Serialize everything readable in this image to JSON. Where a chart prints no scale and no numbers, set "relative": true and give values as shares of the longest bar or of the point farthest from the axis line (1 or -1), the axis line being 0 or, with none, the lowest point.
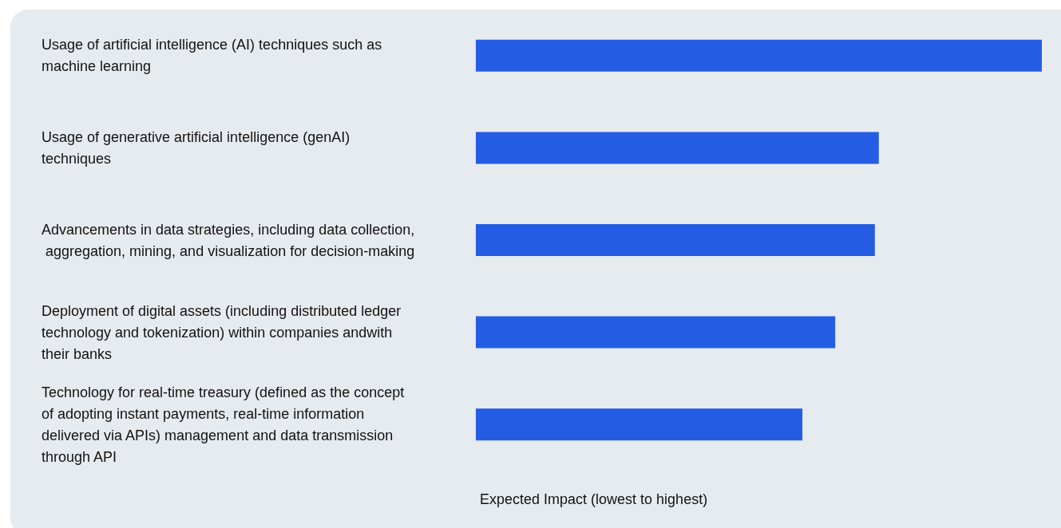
{
  "chart_data": {
    "type": "bar",
    "orientation": "horizontal",
    "relative": true,
    "categories": [
      "Usage of artificial intelligence (AI) techniques such as machine learning",
      "Usage of generative artificial intelligence (genAI) techniques",
      "Advancements in data strategies, including data collection, aggregation, mining, and visualization for decision-making",
      "Deployment of digital assets (including distributed ledger technology and tokenization) within companies andwith their banks",
      "Technology for real-time treasury (defined as the concept of adopting instant payments, real-time information delivered via APIs) management and data transmission through API"
    ],
    "values": [
      1,
      0.712,
      0.705,
      0.635,
      0.577
    ],
    "color": "#245de4",
    "xlabel": "Expected Impact (lowest to highest)"
  }
}
